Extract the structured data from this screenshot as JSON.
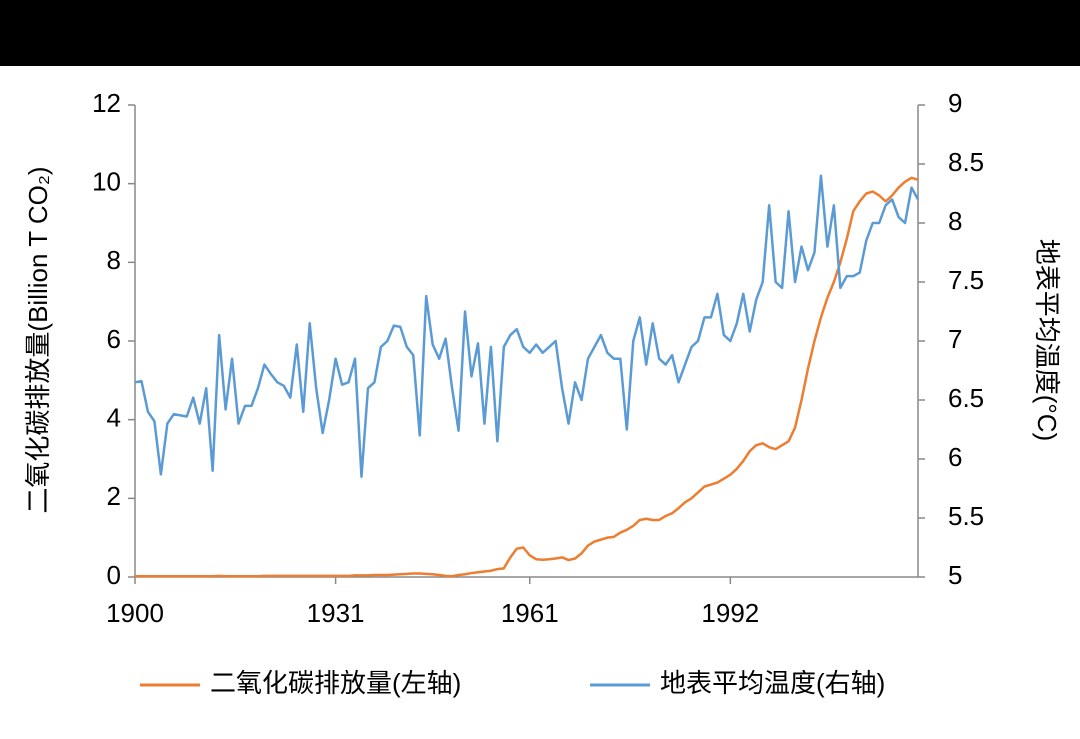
{
  "chart_data": {
    "type": "line",
    "ylabel": "二氧化碳排放量(Billion T CO₂)",
    "y2label": "地表平均温度(°C)",
    "x": [
      1900,
      1901,
      1902,
      1903,
      1904,
      1905,
      1906,
      1907,
      1908,
      1909,
      1910,
      1911,
      1912,
      1913,
      1914,
      1915,
      1916,
      1917,
      1918,
      1919,
      1920,
      1921,
      1922,
      1923,
      1924,
      1925,
      1926,
      1927,
      1928,
      1929,
      1930,
      1931,
      1932,
      1933,
      1934,
      1935,
      1936,
      1937,
      1938,
      1939,
      1940,
      1941,
      1942,
      1943,
      1944,
      1945,
      1946,
      1947,
      1948,
      1949,
      1950,
      1951,
      1952,
      1953,
      1954,
      1955,
      1956,
      1957,
      1958,
      1959,
      1960,
      1961,
      1962,
      1963,
      1964,
      1965,
      1966,
      1967,
      1968,
      1969,
      1970,
      1971,
      1972,
      1973,
      1974,
      1975,
      1976,
      1977,
      1978,
      1979,
      1980,
      1981,
      1982,
      1983,
      1984,
      1985,
      1986,
      1987,
      1988,
      1989,
      1990,
      1991,
      1992,
      1993,
      1994,
      1995,
      1996,
      1997,
      1998,
      1999,
      2000,
      2001,
      2002,
      2003,
      2004,
      2005,
      2006,
      2007,
      2008,
      2009,
      2010,
      2011,
      2012,
      2013,
      2014,
      2015,
      2016,
      2017,
      2018,
      2019,
      2020,
      2021
    ],
    "xlim": [
      1900,
      2021
    ],
    "xticks": [
      1900,
      1931,
      1961,
      1992
    ],
    "ylim": [
      0,
      12
    ],
    "yticks": [
      0,
      2,
      4,
      6,
      8,
      10,
      12
    ],
    "y2lim": [
      5,
      9
    ],
    "y2ticks": [
      5,
      5.5,
      6,
      6.5,
      7,
      7.5,
      8,
      8.5,
      9
    ],
    "legend": "bottom",
    "series": [
      {
        "name": "二氧化碳排放量(左轴)",
        "color": "#ed7d31",
        "values": [
          0.02,
          0.02,
          0.02,
          0.02,
          0.02,
          0.02,
          0.02,
          0.02,
          0.02,
          0.02,
          0.02,
          0.02,
          0.02,
          0.03,
          0.02,
          0.02,
          0.02,
          0.02,
          0.02,
          0.02,
          0.03,
          0.03,
          0.03,
          0.03,
          0.03,
          0.03,
          0.03,
          0.03,
          0.03,
          0.03,
          0.03,
          0.03,
          0.03,
          0.03,
          0.04,
          0.04,
          0.04,
          0.05,
          0.05,
          0.05,
          0.06,
          0.07,
          0.08,
          0.09,
          0.09,
          0.08,
          0.07,
          0.05,
          0.03,
          0.02,
          0.05,
          0.07,
          0.1,
          0.12,
          0.14,
          0.16,
          0.2,
          0.22,
          0.5,
          0.72,
          0.75,
          0.55,
          0.45,
          0.44,
          0.45,
          0.47,
          0.5,
          0.43,
          0.47,
          0.6,
          0.8,
          0.9,
          0.95,
          1.0,
          1.02,
          1.13,
          1.2,
          1.3,
          1.45,
          1.48,
          1.45,
          1.45,
          1.55,
          1.62,
          1.75,
          1.9,
          2.0,
          2.15,
          2.3,
          2.35,
          2.4,
          2.5,
          2.6,
          2.75,
          2.95,
          3.2,
          3.35,
          3.4,
          3.3,
          3.25,
          3.35,
          3.45,
          3.8,
          4.5,
          5.3,
          6.0,
          6.6,
          7.1,
          7.5,
          8.0,
          8.6,
          9.3,
          9.55,
          9.75,
          9.8,
          9.7,
          9.55,
          9.7,
          9.9,
          10.05,
          10.15,
          10.1
        ]
      },
      {
        "name": "地表平均温度(右轴)",
        "color": "#5b9bd5",
        "axis": "y2",
        "values": [
          6.65,
          6.66,
          6.4,
          6.32,
          5.87,
          6.3,
          6.38,
          6.37,
          6.36,
          6.52,
          6.3,
          6.6,
          5.9,
          7.05,
          6.42,
          6.85,
          6.3,
          6.45,
          6.45,
          6.6,
          6.8,
          6.72,
          6.65,
          6.62,
          6.52,
          6.97,
          6.4,
          7.15,
          6.6,
          6.22,
          6.5,
          6.85,
          6.63,
          6.65,
          6.85,
          5.85,
          6.6,
          6.65,
          6.95,
          7.0,
          7.13,
          7.12,
          6.95,
          6.88,
          6.2,
          7.38,
          6.97,
          6.85,
          7.02,
          6.6,
          6.24,
          7.25,
          6.7,
          6.98,
          6.3,
          6.95,
          6.15,
          6.95,
          7.05,
          7.1,
          6.95,
          6.9,
          6.97,
          6.9,
          6.95,
          7.0,
          6.6,
          6.3,
          6.65,
          6.5,
          6.85,
          6.95,
          7.05,
          6.9,
          6.85,
          6.85,
          6.25,
          7.0,
          7.2,
          6.8,
          7.15,
          6.85,
          6.8,
          6.88,
          6.65,
          6.8,
          6.95,
          7.0,
          7.2,
          7.2,
          7.4,
          7.05,
          7.0,
          7.15,
          7.4,
          7.08,
          7.35,
          7.5,
          8.15,
          7.5,
          7.45,
          8.1,
          7.5,
          7.8,
          7.6,
          7.75,
          8.4,
          7.8,
          8.15,
          7.45,
          7.55,
          7.55,
          7.58,
          7.85,
          8.0,
          8.0,
          8.15,
          8.2,
          8.05,
          8.0,
          8.3,
          8.2
        ]
      }
    ]
  }
}
